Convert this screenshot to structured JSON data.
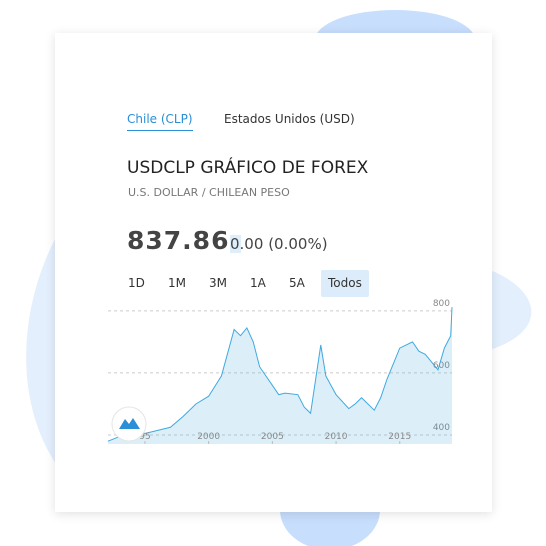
{
  "tabs": [
    "Chile (CLP)",
    "Estados Unidos (USD)"
  ],
  "symbol_title": "USDCLP GRÁFICO DE FOREX",
  "subtitle": "U.S. DOLLAR / CHILEAN PESO",
  "price": "837.86",
  "change": "0.00",
  "change_pct": "(0.00%)",
  "ranges": [
    "1D",
    "1M",
    "3M",
    "1A",
    "5A",
    "Todos"
  ],
  "chart_data": {
    "type": "line",
    "x": [
      1992.1,
      1993,
      1994,
      1995,
      1996,
      1997,
      1998,
      1999,
      2000,
      2001,
      2002,
      2002.5,
      2003,
      2003.5,
      2004,
      2005,
      2005.5,
      2006,
      2007,
      2007.5,
      2008,
      2008.8,
      2009.2,
      2010,
      2011,
      2011.5,
      2012,
      2013,
      2013.5,
      2014,
      2015,
      2016,
      2016.5,
      2017,
      2018,
      2018.5,
      2019,
      2019.1
    ],
    "series": [
      {
        "color": "#3fa9e0",
        "values": [
          380,
          395,
          420,
          405,
          415,
          425,
          460,
          500,
          525,
          590,
          740,
          720,
          745,
          700,
          620,
          560,
          530,
          535,
          530,
          490,
          470,
          690,
          590,
          530,
          485,
          500,
          520,
          480,
          520,
          580,
          680,
          700,
          670,
          660,
          610,
          680,
          720,
          812
        ]
      }
    ],
    "xlim": [
      1992.1,
      2019.1
    ],
    "xticks": [
      {
        "value": 1995,
        "label": "95"
      },
      2000,
      2005,
      2010,
      2015
    ],
    "ylim": [
      371,
      835
    ],
    "yticks": [
      400,
      600,
      800
    ],
    "grid": true
  }
}
